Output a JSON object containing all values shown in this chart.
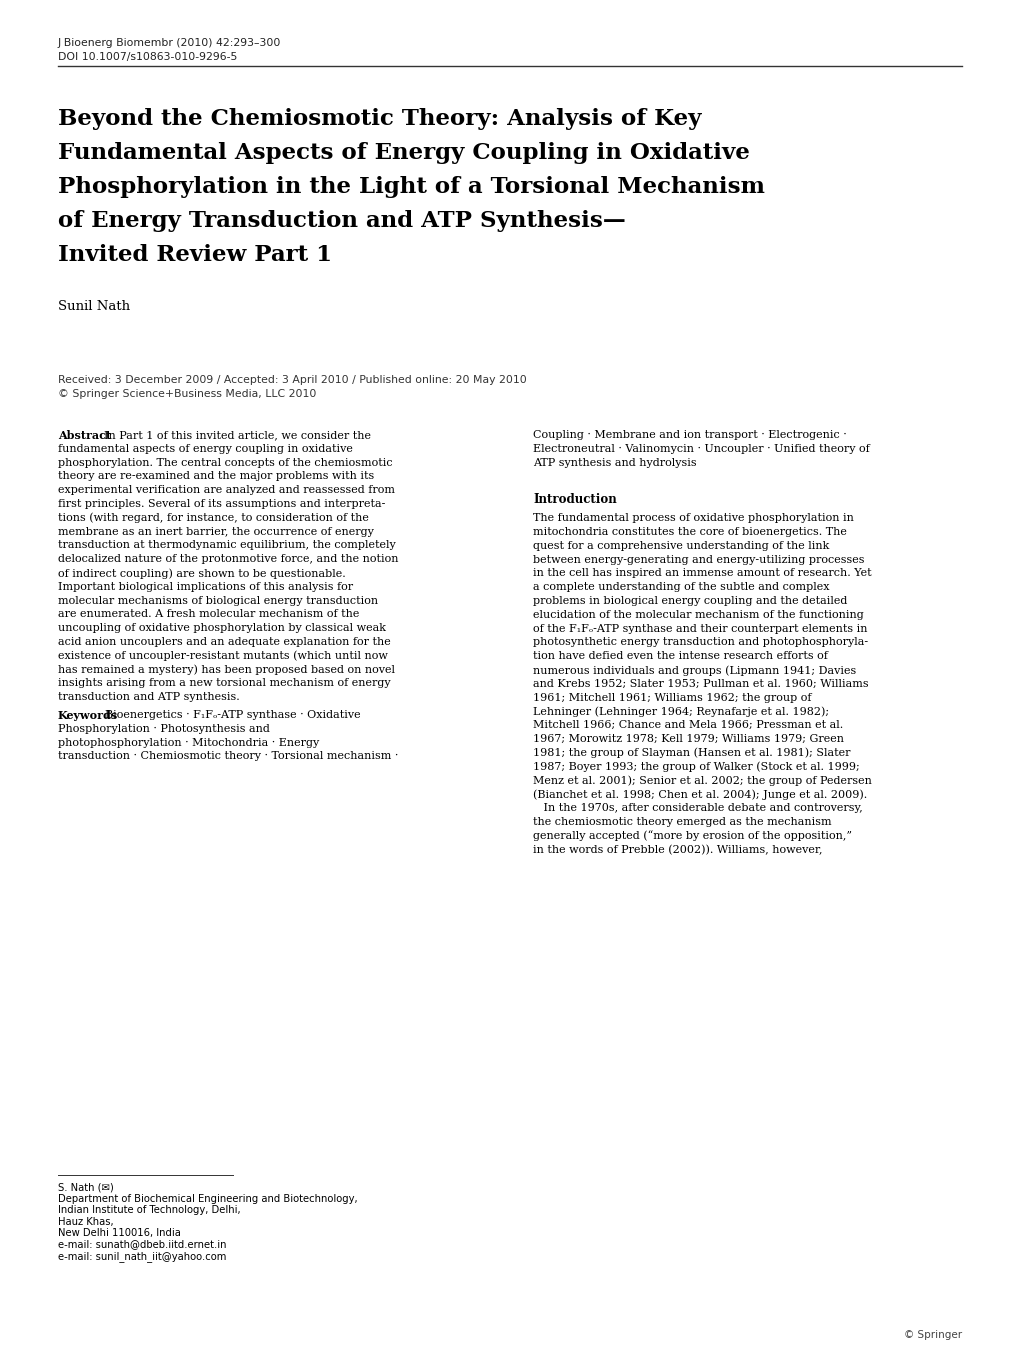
{
  "background_color": "#ffffff",
  "journal_line1": "J Bioenerg Biomembr (2010) 42:293–300",
  "journal_line2": "DOI 10.1007/s10863-010-9296-5",
  "title_lines": [
    "Beyond the Chemiosmotic Theory: Analysis of Key",
    "Fundamental Aspects of Energy Coupling in Oxidative",
    "Phosphorylation in the Light of a Torsional Mechanism",
    "of Energy Transduction and ATP Synthesis—",
    "Invited Review Part 1"
  ],
  "author": "Sunil Nath",
  "received": "Received: 3 December 2009 / Accepted: 3 April 2010 / Published online: 20 May 2010",
  "copyright": "© Springer Science+Business Media, LLC 2010",
  "abs_first_line": "In Part 1 of this invited article, we consider the",
  "abs_lines": [
    "fundamental aspects of energy coupling in oxidative",
    "phosphorylation. The central concepts of the chemiosmotic",
    "theory are re-examined and the major problems with its",
    "experimental verification are analyzed and reassessed from",
    "first principles. Several of its assumptions and interpreta-",
    "tions (with regard, for instance, to consideration of the",
    "membrane as an inert barrier, the occurrence of energy",
    "transduction at thermodynamic equilibrium, the completely",
    "delocalized nature of the protonmotive force, and the notion",
    "of indirect coupling) are shown to be questionable.",
    "Important biological implications of this analysis for",
    "molecular mechanisms of biological energy transduction",
    "are enumerated. A fresh molecular mechanism of the",
    "uncoupling of oxidative phosphorylation by classical weak",
    "acid anion uncouplers and an adequate explanation for the",
    "existence of uncoupler-resistant mutants (which until now",
    "has remained a mystery) has been proposed based on novel",
    "insights arising from a new torsional mechanism of energy",
    "transduction and ATP synthesis."
  ],
  "kw_first_line": "Bioenergetics · F₁Fₒ-ATP synthase · Oxidative",
  "kw_lines": [
    "Phosphorylation · Photosynthesis and",
    "photophosphorylation · Mitochondria · Energy",
    "transduction · Chemiosmotic theory · Torsional mechanism ·"
  ],
  "kw2_lines": [
    "Coupling · Membrane and ion transport · Electrogenic ·",
    "Electroneutral · Valinomycin · Uncoupler · Unified theory of",
    "ATP synthesis and hydrolysis"
  ],
  "intro_heading": "Introduction",
  "intro_lines": [
    "The fundamental process of oxidative phosphorylation in",
    "mitochondria constitutes the core of bioenergetics. The",
    "quest for a comprehensive understanding of the link",
    "between energy-generating and energy-utilizing processes",
    "in the cell has inspired an immense amount of research. Yet",
    "a complete understanding of the subtle and complex",
    "problems in biological energy coupling and the detailed",
    "elucidation of the molecular mechanism of the functioning",
    "of the F₁Fₒ-ATP synthase and their counterpart elements in",
    "photosynthetic energy transduction and photophosphoryla-",
    "tion have defied even the intense research efforts of",
    "numerous individuals and groups (Lipmann 1941; Davies",
    "and Krebs 1952; Slater 1953; Pullman et al. 1960; Williams",
    "1961; Mitchell 1961; Williams 1962; the group of",
    "Lehninger (Lehninger 1964; Reynafarje et al. 1982);",
    "Mitchell 1966; Chance and Mela 1966; Pressman et al.",
    "1967; Morowitz 1978; Kell 1979; Williams 1979; Green",
    "1981; the group of Slayman (Hansen et al. 1981); Slater",
    "1987; Boyer 1993; the group of Walker (Stock et al. 1999;",
    "Menz et al. 2001); Senior et al. 2002; the group of Pedersen",
    "(Bianchet et al. 1998; Chen et al. 2004); Junge et al. 2009).",
    "   In the 1970s, after considerable debate and controversy,",
    "the chemiosmotic theory emerged as the mechanism",
    "generally accepted (“more by erosion of the opposition,”",
    "in the words of Prebble (2002)). Williams, however,"
  ],
  "footnote_name": "S. Nath (✉)",
  "footnote_lines": [
    "Department of Biochemical Engineering and Biotechnology,",
    "Indian Institute of Technology, Delhi,",
    "Hauz Khas,",
    "New Delhi 110016, India",
    "e-mail: sunath@dbeb.iitd.ernet.in",
    "e-mail: sunil_nath_iit@yahoo.com"
  ],
  "springer_text": "© Springer"
}
